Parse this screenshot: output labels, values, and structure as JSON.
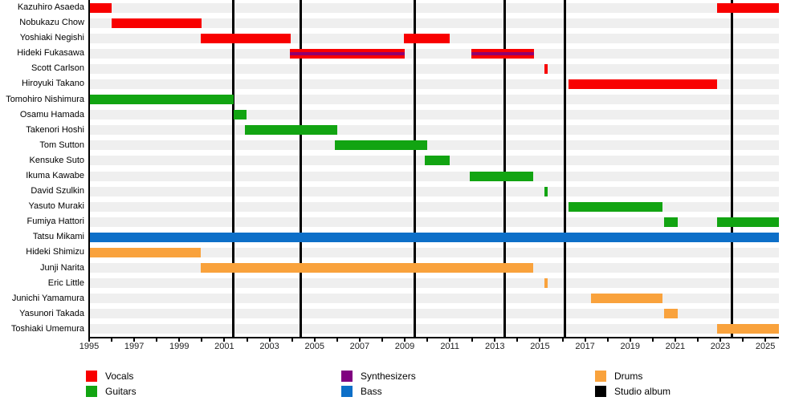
{
  "chart_data": {
    "type": "gantt",
    "subtype": "band-member-timeline",
    "x_axis": {
      "start": 1995,
      "end": 2025.6,
      "tick_interval": 1,
      "label_interval": 2,
      "labels": [
        "1995",
        "1997",
        "1999",
        "2001",
        "2003",
        "2005",
        "2007",
        "2009",
        "2011",
        "2013",
        "2015",
        "2017",
        "2019",
        "2021",
        "2023",
        "2025"
      ]
    },
    "colors": {
      "vocals": "#f80000",
      "guitars": "#12a412",
      "synthesizers": "#800080",
      "bass": "#0d6fc8",
      "drums": "#f9a23c",
      "studio_album": "#000000",
      "row_stripe": "#efefef"
    },
    "members": [
      {
        "name": "Kazuhiro Asaeda",
        "roles": [
          "vocals"
        ],
        "periods": [
          [
            1995.0,
            1996.0
          ],
          [
            2022.85,
            2025.6
          ]
        ]
      },
      {
        "name": "Nobukazu Chow",
        "roles": [
          "vocals"
        ],
        "periods": [
          [
            1996.0,
            2000.0
          ]
        ]
      },
      {
        "name": "Yoshiaki Negishi",
        "roles": [
          "vocals"
        ],
        "periods": [
          [
            1999.95,
            2003.95
          ],
          [
            2008.95,
            2011.0
          ]
        ]
      },
      {
        "name": "Hideki Fukasawa",
        "roles": [
          "vocals",
          "synthesizers"
        ],
        "periods": [
          [
            2003.9,
            2009.0
          ],
          [
            2011.95,
            2014.75
          ]
        ]
      },
      {
        "name": "Scott Carlson",
        "roles": [
          "vocals"
        ],
        "periods": [
          [
            2015.2,
            2015.35
          ]
        ]
      },
      {
        "name": "Hiroyuki Takano",
        "roles": [
          "vocals"
        ],
        "periods": [
          [
            2016.25,
            2022.85
          ]
        ]
      },
      {
        "name": "Tomohiro Nishimura",
        "roles": [
          "guitars"
        ],
        "periods": [
          [
            1995.0,
            2001.4
          ]
        ]
      },
      {
        "name": "Osamu Hamada",
        "roles": [
          "guitars"
        ],
        "periods": [
          [
            2001.4,
            2002.0
          ]
        ]
      },
      {
        "name": "Takenori Hoshi",
        "roles": [
          "guitars"
        ],
        "periods": [
          [
            2001.9,
            2006.0
          ]
        ]
      },
      {
        "name": "Tom Sutton",
        "roles": [
          "guitars"
        ],
        "periods": [
          [
            2005.9,
            2010.0
          ]
        ]
      },
      {
        "name": "Kensuke Suto",
        "roles": [
          "guitars"
        ],
        "periods": [
          [
            2009.9,
            2011.0
          ]
        ]
      },
      {
        "name": "Ikuma Kawabe",
        "roles": [
          "guitars"
        ],
        "periods": [
          [
            2011.9,
            2014.7
          ]
        ]
      },
      {
        "name": "David Szulkin",
        "roles": [
          "guitars"
        ],
        "periods": [
          [
            2015.2,
            2015.35
          ]
        ]
      },
      {
        "name": "Yasuto Muraki",
        "roles": [
          "guitars"
        ],
        "periods": [
          [
            2016.25,
            2020.45
          ]
        ]
      },
      {
        "name": "Fumiya Hattori",
        "roles": [
          "guitars"
        ],
        "periods": [
          [
            2020.5,
            2021.1
          ],
          [
            2022.85,
            2025.6
          ]
        ]
      },
      {
        "name": "Tatsu Mikami",
        "roles": [
          "bass"
        ],
        "periods": [
          [
            1995.0,
            2025.6
          ]
        ]
      },
      {
        "name": "Hideki Shimizu",
        "roles": [
          "drums"
        ],
        "periods": [
          [
            1995.0,
            1999.95
          ]
        ]
      },
      {
        "name": "Junji Narita",
        "roles": [
          "drums"
        ],
        "periods": [
          [
            1999.95,
            2014.7
          ]
        ]
      },
      {
        "name": "Eric Little",
        "roles": [
          "drums"
        ],
        "periods": [
          [
            2015.2,
            2015.35
          ]
        ]
      },
      {
        "name": "Junichi Yamamura",
        "roles": [
          "drums"
        ],
        "periods": [
          [
            2017.25,
            2020.45
          ]
        ]
      },
      {
        "name": "Yasunori Takada",
        "roles": [
          "drums"
        ],
        "periods": [
          [
            2020.5,
            2021.1
          ]
        ]
      },
      {
        "name": "Toshiaki Umemura",
        "roles": [
          "drums"
        ],
        "periods": [
          [
            2022.85,
            2025.6
          ]
        ]
      }
    ],
    "studio_albums": [
      2001.4,
      2004.4,
      2009.45,
      2013.45,
      2016.1,
      2023.5
    ],
    "legend": {
      "columns": [
        [
          {
            "label": "Vocals",
            "role": "vocals"
          },
          {
            "label": "Guitars",
            "role": "guitars"
          }
        ],
        [
          {
            "label": "Synthesizers",
            "role": "synthesizers"
          },
          {
            "label": "Bass",
            "role": "bass"
          }
        ],
        [
          {
            "label": "Drums",
            "role": "drums"
          },
          {
            "label": "Studio album",
            "role": "studio_album"
          }
        ]
      ]
    }
  }
}
